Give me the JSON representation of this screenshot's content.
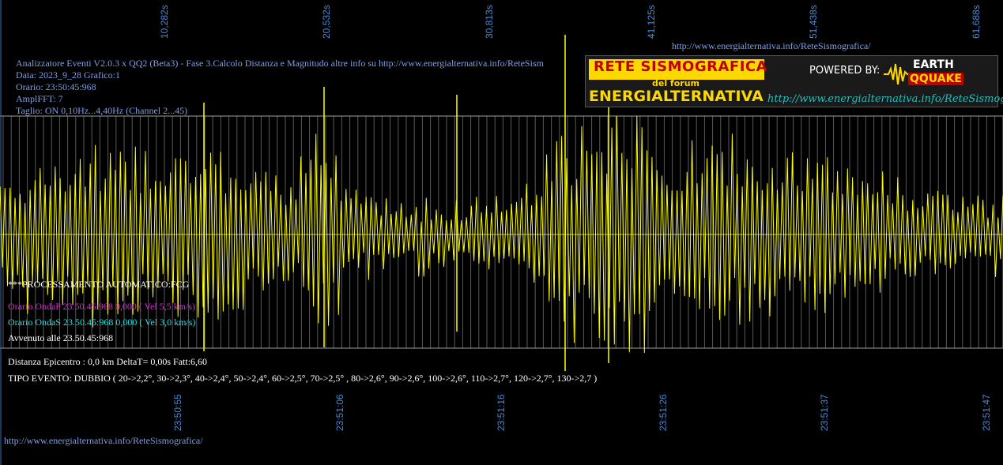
{
  "header_lines": [
    "Analizzatore Eventi V2.0.3 x QQ2 (Beta3) - Fase 3.Calcolo Distanza e Magnitudo altre info su http://www.energialternativa.info/ReteSism",
    "Data: 2023_9_28 Grafico:1",
    "Orario: 23:50:45:968",
    "AmplFFT: 7",
    "Taglio: ON 0,10Hz...4,40Hz      (Channel 2...45)"
  ],
  "top_url": "http://www.energialternativa.info/ReteSismografica/",
  "bottom_url": "http://www.energialternativa.info/ReteSismografica/",
  "banner": {
    "title": "RETE SISMOGRAFICA",
    "subtitle": "del forum",
    "brand": "ENERGIALTERNATIVA",
    "powered_by": "POWERED BY:",
    "logo_line1": "EARTH",
    "logo_line2": "QQUAKE",
    "url": "http://www.energialternativa.info/ReteSismografica"
  },
  "info": {
    "processing": "***PROCESSAMENTO AUTOMATICO:FCG",
    "onda_p": "Orario OndaP 23.50.45:968  0,000 ( Vel 5,5 km/s)",
    "onda_s": "Orario OndaS 23.50.45:968  0,000 ( Vel 3,0 km/s)",
    "avvenuto": "Avvenuto alle 23.50.45:968",
    "distanza": "Distanza Epicentro : 0,0 km DeltaT= 0,00s  Fatt:6,60",
    "tipo_evento": "TIPO EVENTO: DUBBIO ( 20->2,2°, 30->2,3°, 40->2,4°, 50->2,4°, 60->2,5°, 70->2,5° , 80->2,6°, 90->2,6°, 100->2,6°, 110->2,7°, 120->2,7°, 130->2,7 )"
  },
  "colors": {
    "background": "#000000",
    "waveform": "#ffff00",
    "grid": "#808080",
    "tick_labels": "#4a8ad4",
    "header_text": "#7f9fe8"
  },
  "chart_data": {
    "type": "line",
    "series": [
      {
        "name": "",
        "color": "#ffff00",
        "description_seed": 7
      }
    ],
    "top_axis_seconds": [
      "10,282s",
      "20,532s",
      "30,813s",
      "41,125s",
      "51,438s",
      "61,688s"
    ],
    "bottom_axis_times": [
      "23:50:55",
      "23:51:06",
      "23:51:16",
      "23:51:26",
      "23:51:37",
      "23:51:47"
    ],
    "xlim_seconds": [
      0,
      62.5
    ],
    "ylim": [
      -1,
      1
    ],
    "grid": true,
    "samples": 400
  }
}
